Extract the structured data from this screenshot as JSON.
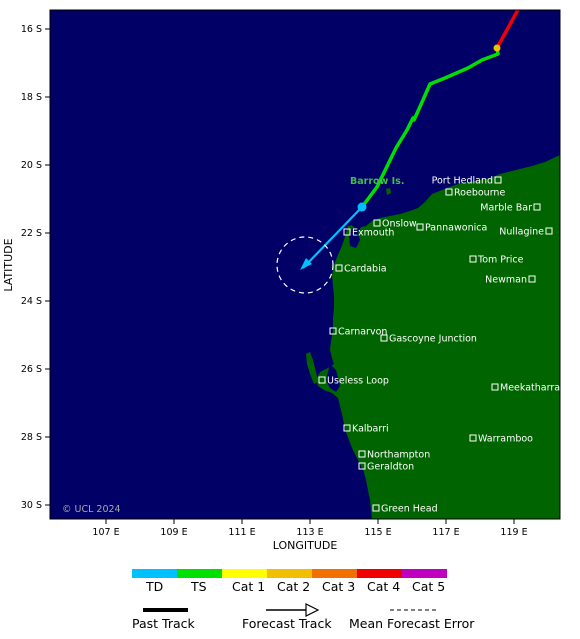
{
  "axes": {
    "xlabel": "LONGITUDE",
    "ylabel": "LATITUDE",
    "x_ticks": [
      "107 E",
      "109 E",
      "111 E",
      "113 E",
      "115 E",
      "117 E",
      "119 E"
    ],
    "y_ticks": [
      "16 S",
      "18 S",
      "20 S",
      "22 S",
      "24 S",
      "26 S",
      "28 S",
      "30 S"
    ]
  },
  "colors": {
    "ocean": "#000066",
    "land": "#006400",
    "TD": "#00c0ff",
    "TS": "#00e000",
    "Cat 1": "#ffff00",
    "Cat 2": "#f0c000",
    "Cat 3": "#f07000",
    "Cat 4": "#f00000",
    "Cat 5": "#c000c0"
  },
  "copyright": "© UCL 2024",
  "island_label": "Barrow Is.",
  "places": [
    {
      "name": "Port Hedland"
    },
    {
      "name": "Roebourne"
    },
    {
      "name": "Marble Bar"
    },
    {
      "name": "Onslow"
    },
    {
      "name": "Pannawonica"
    },
    {
      "name": "Nullagine"
    },
    {
      "name": "Exmouth"
    },
    {
      "name": "Tom Price"
    },
    {
      "name": "Cardabia"
    },
    {
      "name": "Newman"
    },
    {
      "name": "Carnarvon"
    },
    {
      "name": "Gascoyne Junction"
    },
    {
      "name": "Useless Loop"
    },
    {
      "name": "Meekatharra"
    },
    {
      "name": "Kalbarri"
    },
    {
      "name": "Warramboo"
    },
    {
      "name": "Northampton"
    },
    {
      "name": "Geraldton"
    },
    {
      "name": "Green Head"
    }
  ],
  "legend": {
    "categories": [
      "TD",
      "TS",
      "Cat 1",
      "Cat 2",
      "Cat 3",
      "Cat 4",
      "Cat 5"
    ],
    "past_track": "Past Track",
    "forecast_track": "Forecast Track",
    "mean_error": "Mean Forecast Error"
  }
}
